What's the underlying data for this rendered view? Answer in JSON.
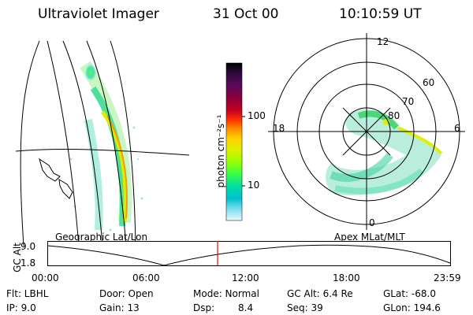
{
  "header": {
    "title": "Ultraviolet Imager",
    "date": "31 Oct 00",
    "time": "10:10:59 UT"
  },
  "colorbar": {
    "label": "photon cm⁻²s⁻¹",
    "ticks": [
      "100",
      "10"
    ],
    "colors": [
      "#000000",
      "#2a0a3a",
      "#5a0a5a",
      "#8a003a",
      "#c00020",
      "#ff3000",
      "#ff9000",
      "#ffd000",
      "#e0f000",
      "#a0ff00",
      "#40ff40",
      "#00e0a0",
      "#00c0d0",
      "#80e0f0",
      "#e8f8ff"
    ]
  },
  "map_left": {
    "label": "Geographic Lat/Lon"
  },
  "map_right": {
    "label": "Apex  MLat/MLT",
    "mlt_labels": [
      "12",
      "18",
      "6",
      "0"
    ],
    "lat_labels": [
      "60",
      "70",
      "80"
    ]
  },
  "altitude_plot": {
    "ylabel": "GC Alt",
    "yticks": [
      "9.0",
      "1.8"
    ],
    "xticks": [
      "00:00",
      "06:00",
      "12:00",
      "18:00",
      "23:59"
    ],
    "marker_color": "#ff0000"
  },
  "info": {
    "filter": "Flt:  LBHL",
    "ip": "IP:  9.0",
    "door": "Door:  Open",
    "gain": "Gain:  13",
    "mode": "Mode:  Normal",
    "dsp_label": "Dsp:",
    "dsp_value": "8.4",
    "gc_alt": "GC Alt:  6.4  Re",
    "seq": "Seq:  39",
    "glat": "GLat:  -68.0",
    "glon": "GLon:  194.6"
  }
}
